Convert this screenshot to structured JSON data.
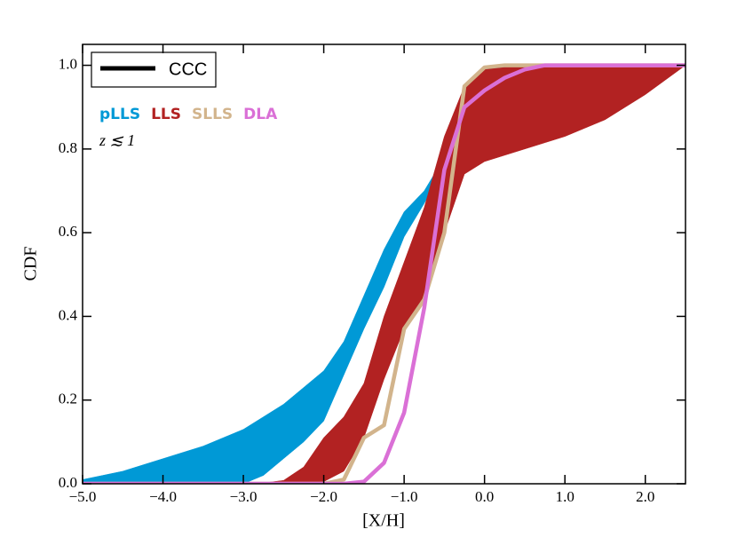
{
  "chart_data": {
    "type": "line",
    "xlabel": "[X/H]",
    "ylabel": "CDF",
    "annotation": "z ≲ 1",
    "legend_label": "CCC",
    "legend_color": "#000000",
    "x": [
      -5,
      -4.75,
      -4.5,
      -4.25,
      -4,
      -3.75,
      -3.5,
      -3.25,
      -3,
      -2.75,
      -2.5,
      -2.25,
      -2,
      -1.75,
      -1.5,
      -1.25,
      -1,
      -0.75,
      -0.5,
      -0.25,
      0,
      0.25,
      0.5,
      0.75,
      1,
      1.25,
      1.5,
      1.75,
      2,
      2.25,
      2.5
    ],
    "series": [
      {
        "name": "pLLS",
        "color": "#0099d6",
        "upper": [
          0.01,
          0.02,
          0.03,
          0.045,
          0.06,
          0.075,
          0.09,
          0.11,
          0.13,
          0.16,
          0.19,
          0.23,
          0.27,
          0.34,
          0.45,
          0.56,
          0.65,
          0.7,
          0.78,
          0.87,
          0.995,
          1,
          1,
          1,
          1,
          1,
          1,
          1,
          1,
          1,
          1
        ],
        "lower": [
          0,
          0,
          0,
          0,
          0,
          0,
          0,
          0,
          0,
          0.02,
          0.06,
          0.1,
          0.15,
          0.26,
          0.37,
          0.47,
          0.59,
          0.67,
          0.76,
          0.84,
          0.87,
          0.88,
          0.89,
          0.9,
          0.91,
          0.93,
          0.945,
          0.96,
          0.975,
          0.99,
          1
        ]
      },
      {
        "name": "LLS",
        "color": "#b22222",
        "upper": [
          0,
          0,
          0,
          0,
          0,
          0,
          0,
          0,
          0,
          0.002,
          0.008,
          0.04,
          0.11,
          0.16,
          0.24,
          0.4,
          0.53,
          0.66,
          0.83,
          0.95,
          0.99,
          0.995,
          1,
          1,
          1,
          1,
          1,
          1,
          1,
          1,
          1
        ],
        "lower": [
          0,
          0,
          0,
          0,
          0,
          0,
          0,
          0,
          0,
          0,
          0,
          0,
          0.005,
          0.03,
          0.11,
          0.25,
          0.37,
          0.45,
          0.6,
          0.74,
          0.77,
          0.785,
          0.8,
          0.815,
          0.83,
          0.85,
          0.87,
          0.9,
          0.93,
          0.965,
          1
        ]
      },
      {
        "name": "SLLS",
        "color": "#d2b48c",
        "values": [
          0,
          0,
          0,
          0,
          0,
          0,
          0,
          0,
          0,
          0,
          0,
          0,
          0,
          0.01,
          0.11,
          0.14,
          0.37,
          0.44,
          0.6,
          0.95,
          0.995,
          1,
          1,
          1,
          1,
          1,
          1,
          1,
          1,
          1,
          1
        ]
      },
      {
        "name": "DLA",
        "color": "#da70d6",
        "values": [
          0,
          0,
          0,
          0,
          0,
          0,
          0,
          0,
          0,
          0,
          0,
          0,
          0,
          0,
          0.005,
          0.05,
          0.17,
          0.42,
          0.75,
          0.9,
          0.94,
          0.97,
          0.99,
          1,
          1,
          1,
          1,
          1,
          1,
          1,
          1
        ]
      }
    ],
    "xlim": [
      -5,
      2.5
    ],
    "ylim": [
      0,
      1.05
    ],
    "xticks": [
      {
        "value": -5,
        "label": "−5.0"
      },
      {
        "value": -4,
        "label": "−4.0"
      },
      {
        "value": -3,
        "label": "−3.0"
      },
      {
        "value": -2,
        "label": "−2.0"
      },
      {
        "value": -1,
        "label": "−1.0"
      },
      {
        "value": 0,
        "label": "0.0"
      },
      {
        "value": 1,
        "label": "1.0"
      },
      {
        "value": 2,
        "label": "2.0"
      }
    ],
    "yticks": [
      {
        "value": 0,
        "label": "0.0"
      },
      0.2,
      0.4,
      0.6,
      0.8,
      {
        "value": 1,
        "label": "1.0"
      }
    ],
    "grid": false
  }
}
